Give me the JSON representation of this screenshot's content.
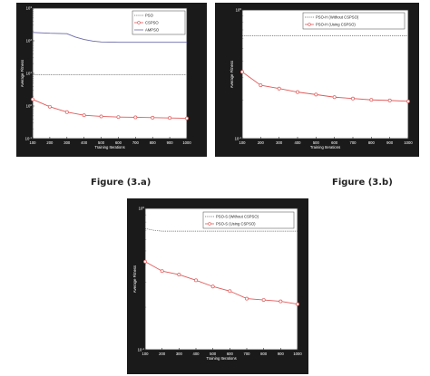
{
  "figure_captions": [
    "Figure (3.a)",
    "Figure (3.b)"
  ],
  "chart_data": [
    {
      "type": "line",
      "ylabel": "Average Fitness",
      "xlabel": "Training Iterations",
      "yscale": "log",
      "ylim": [
        0.1,
        1000
      ],
      "y_tick_labels": [
        "10^-1",
        "10^0",
        "10^1",
        "10^2",
        "10^3"
      ],
      "xlim": [
        100,
        1000
      ],
      "x_tick_labels": [
        "100",
        "200",
        "300",
        "400",
        "500",
        "600",
        "700",
        "800",
        "900",
        "1000"
      ],
      "legend": "top-right",
      "grid": false,
      "series": [
        {
          "name": "PSO",
          "color": "#666666",
          "style": "dotted",
          "marker": "none",
          "x": [
            100,
            200,
            300,
            400,
            500,
            600,
            700,
            800,
            900,
            1000
          ],
          "y": [
            9,
            9,
            9,
            9,
            9,
            9,
            9,
            9,
            9,
            9
          ]
        },
        {
          "name": "CSPSO",
          "color": "#e05a5a",
          "style": "solid",
          "marker": "circle",
          "x": [
            100,
            200,
            300,
            400,
            500,
            600,
            700,
            800,
            900,
            1000
          ],
          "y": [
            1.6,
            0.95,
            0.65,
            0.52,
            0.48,
            0.46,
            0.45,
            0.44,
            0.43,
            0.42
          ]
        },
        {
          "name": "AMPSO",
          "color": "#6a6aa8",
          "style": "solid",
          "marker": "none",
          "x": [
            100,
            200,
            250,
            300,
            350,
            400,
            450,
            500,
            600,
            700,
            800,
            900,
            1000
          ],
          "y": [
            180,
            170,
            168,
            165,
            130,
            110,
            98,
            92,
            90,
            90,
            90,
            90,
            90
          ]
        }
      ]
    },
    {
      "type": "line",
      "ylabel": "Average Fitness",
      "xlabel": "Training Iterations",
      "yscale": "log",
      "ylim": [
        0.1,
        1
      ],
      "y_tick_labels": [
        "10^-1",
        "10^0"
      ],
      "xlim": [
        100,
        1000
      ],
      "x_tick_labels": [
        "100",
        "200",
        "300",
        "400",
        "500",
        "600",
        "700",
        "800",
        "900",
        "1000"
      ],
      "legend": "top-right",
      "grid": false,
      "series": [
        {
          "name": "PSO-H (Without CSPSO)",
          "color": "#666666",
          "style": "dotted",
          "marker": "none",
          "x": [
            100,
            200,
            300,
            400,
            500,
            600,
            700,
            800,
            900,
            1000
          ],
          "y": [
            0.63,
            0.63,
            0.63,
            0.63,
            0.63,
            0.63,
            0.63,
            0.63,
            0.63,
            0.63
          ]
        },
        {
          "name": "PSO-H (Using CSPSO)",
          "color": "#e05a5a",
          "style": "solid",
          "marker": "circle",
          "x": [
            100,
            200,
            300,
            400,
            500,
            600,
            700,
            800,
            900,
            1000
          ],
          "y": [
            0.33,
            0.26,
            0.245,
            0.23,
            0.22,
            0.21,
            0.205,
            0.2,
            0.198,
            0.195
          ]
        }
      ]
    },
    {
      "type": "line",
      "ylabel": "Average Fitness",
      "xlabel": "Training Iterations",
      "yscale": "log",
      "ylim": [
        0.1,
        1
      ],
      "y_tick_labels": [
        "10^-1",
        "10^0"
      ],
      "xlim": [
        100,
        1000
      ],
      "x_tick_labels": [
        "100",
        "200",
        "300",
        "400",
        "500",
        "600",
        "700",
        "800",
        "900",
        "1000"
      ],
      "legend": "top-right",
      "grid": false,
      "series": [
        {
          "name": "PSO-S (Without CSPSO)",
          "color": "#666666",
          "style": "dotted",
          "marker": "none",
          "x": [
            100,
            150,
            200,
            300,
            400,
            500,
            600,
            700,
            800,
            900,
            1000
          ],
          "y": [
            0.72,
            0.7,
            0.69,
            0.69,
            0.69,
            0.69,
            0.69,
            0.69,
            0.69,
            0.69,
            0.69
          ]
        },
        {
          "name": "PSO-S (Using CSPSO)",
          "color": "#e05a5a",
          "style": "solid",
          "marker": "circle",
          "x": [
            100,
            200,
            300,
            400,
            500,
            600,
            700,
            800,
            900,
            1000
          ],
          "y": [
            0.42,
            0.36,
            0.34,
            0.31,
            0.28,
            0.26,
            0.23,
            0.225,
            0.22,
            0.21
          ]
        }
      ]
    }
  ]
}
